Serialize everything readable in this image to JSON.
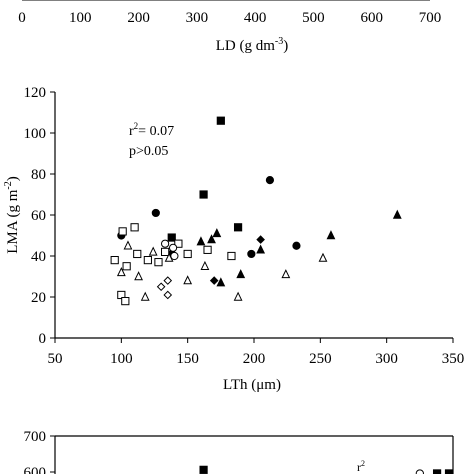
{
  "top_panel": {
    "x_ticks": [
      0,
      100,
      200,
      300,
      400,
      500,
      600,
      700
    ],
    "xlabel": {
      "main": "LD (g dm",
      "sup": "-3",
      "close": ")"
    }
  },
  "chart_data": [
    {
      "type": "scatter",
      "title": "",
      "xlabel": "LTh (μm)",
      "ylabel": {
        "main": "LMA (g m",
        "sup": "-2",
        "close": ")"
      },
      "xlim": [
        50,
        350
      ],
      "ylim": [
        0,
        120
      ],
      "x_ticks": [
        50,
        100,
        150,
        200,
        250,
        300,
        350
      ],
      "y_ticks": [
        0,
        20,
        40,
        60,
        80,
        100,
        120
      ],
      "grid": false,
      "annotation": {
        "r2_prefix": "r",
        "r2_sup": "2",
        "r2_value": "= 0.07",
        "p": "p>0.05"
      },
      "series": [
        {
          "marker": "square-filled",
          "points": [
            [
              175,
              106
            ],
            [
              162,
              70
            ],
            [
              188,
              54
            ],
            [
              138,
              49
            ]
          ]
        },
        {
          "marker": "circle-filled",
          "points": [
            [
              100,
              50
            ],
            [
              126,
              61
            ],
            [
              212,
              77
            ],
            [
              198,
              41
            ],
            [
              232,
              45
            ],
            [
              138,
              41
            ]
          ]
        },
        {
          "marker": "triangle-filled",
          "points": [
            [
              160,
              47
            ],
            [
              168,
              48
            ],
            [
              172,
              51
            ],
            [
              205,
              43
            ],
            [
              258,
              50
            ],
            [
              308,
              60
            ],
            [
              175,
              27
            ],
            [
              190,
              31
            ]
          ]
        },
        {
          "marker": "diamond-filled",
          "points": [
            [
              205,
              48
            ],
            [
              170,
              28
            ]
          ]
        },
        {
          "marker": "square-open",
          "points": [
            [
              95,
              38
            ],
            [
              101,
              52
            ],
            [
              110,
              54
            ],
            [
              104,
              35
            ],
            [
              112,
              41
            ],
            [
              120,
              38
            ],
            [
              128,
              37
            ],
            [
              133,
              42
            ],
            [
              143,
              46
            ],
            [
              150,
              41
            ],
            [
              165,
              43
            ],
            [
              183,
              40
            ],
            [
              100,
              21
            ],
            [
              103,
              18
            ]
          ]
        },
        {
          "marker": "circle-open",
          "points": [
            [
              133,
              46
            ],
            [
              139,
              44
            ],
            [
              140,
              40
            ]
          ]
        },
        {
          "marker": "triangle-open",
          "points": [
            [
              105,
              45
            ],
            [
              113,
              30
            ],
            [
              100,
              32
            ],
            [
              124,
              42
            ],
            [
              136,
              39
            ],
            [
              150,
              28
            ],
            [
              163,
              35
            ],
            [
              118,
              20
            ],
            [
              188,
              20
            ],
            [
              224,
              31
            ],
            [
              252,
              39
            ]
          ]
        },
        {
          "marker": "diamond-open",
          "points": [
            [
              130,
              25
            ],
            [
              135,
              28
            ],
            [
              135,
              21
            ]
          ]
        }
      ]
    },
    {
      "type": "scatter",
      "y_ticks": [
        600,
        700
      ],
      "ylim_visible": [
        580,
        700
      ],
      "annotation_partial": {
        "r2_prefix": "r",
        "r2_sup": "2"
      },
      "series": [
        {
          "marker": "square-filled",
          "points": [
            [
              162,
              606
            ],
            [
              338,
              596
            ],
            [
              347,
              596
            ]
          ]
        },
        {
          "marker": "circle-open",
          "points": [
            [
              325,
              596
            ]
          ]
        }
      ]
    }
  ]
}
